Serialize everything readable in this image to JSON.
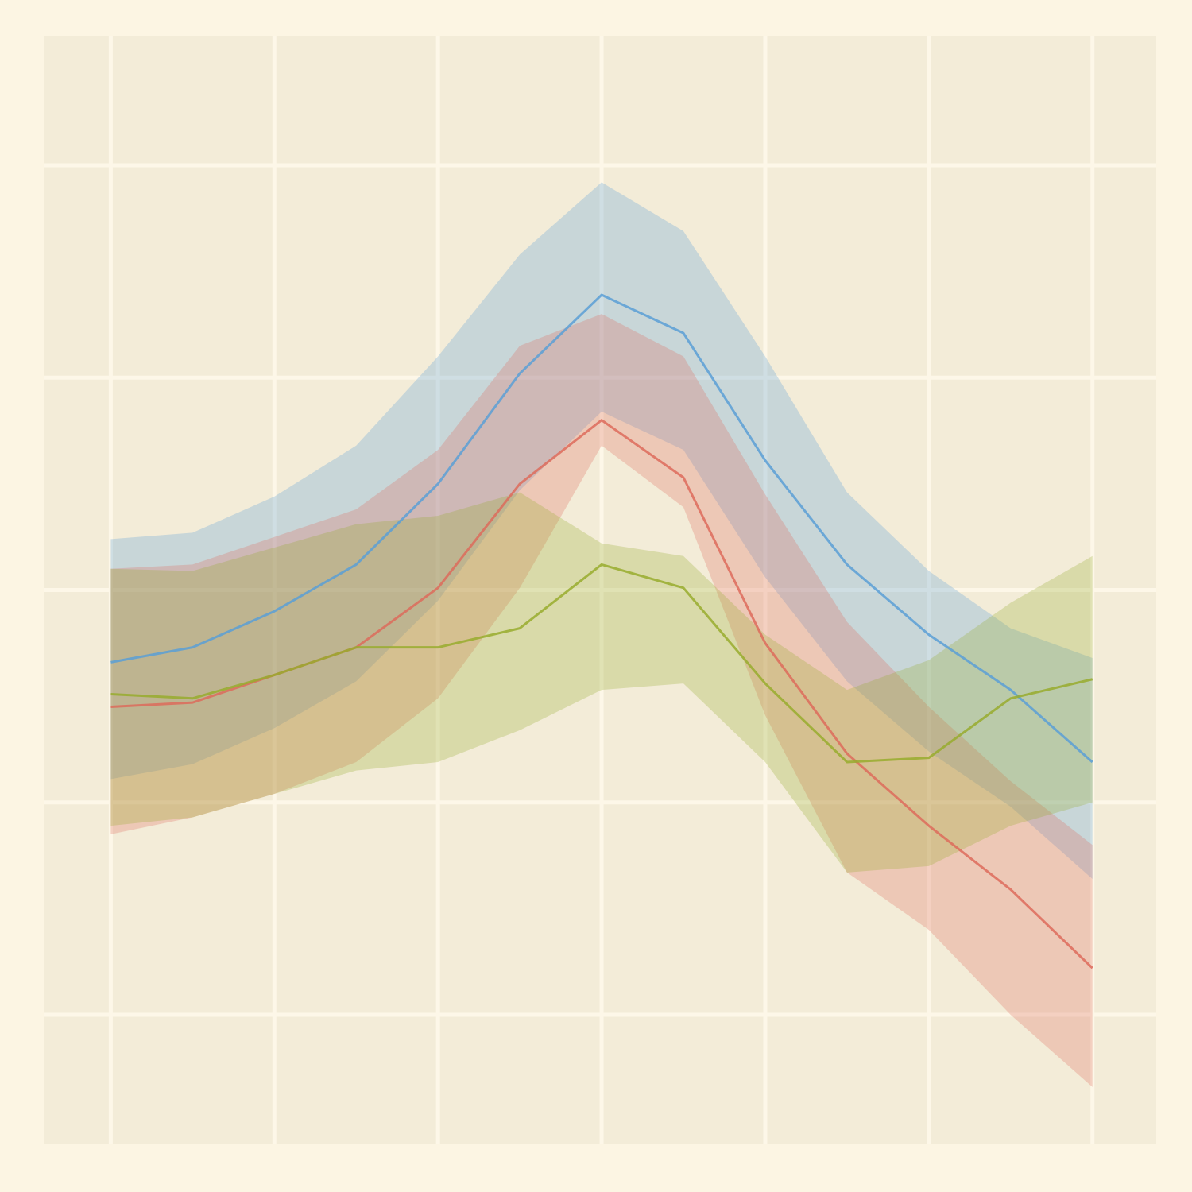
{
  "chart_data": {
    "type": "line",
    "x": [
      0,
      0.5,
      1,
      1.5,
      2,
      2.5,
      3,
      3.5,
      4,
      4.5,
      5,
      5.5,
      6
    ],
    "xlim": [
      -0.41,
      6.39
    ],
    "xticks": [
      0,
      1,
      2,
      3,
      4,
      5,
      6
    ],
    "ylim": [
      -0.61,
      4.61
    ],
    "yticks": [
      0,
      1,
      2,
      3,
      4
    ],
    "grid": true,
    "series": [
      {
        "color": "#5b9fd6",
        "values": [
          1.66,
          1.73,
          1.9,
          2.12,
          2.5,
          3.02,
          3.39,
          3.21,
          2.61,
          2.12,
          1.79,
          1.53,
          1.19
        ],
        "upper": [
          2.24,
          2.27,
          2.44,
          2.68,
          3.1,
          3.58,
          3.92,
          3.69,
          3.1,
          2.46,
          2.09,
          1.82,
          1.68
        ],
        "lower": [
          1.11,
          1.18,
          1.35,
          1.57,
          1.95,
          2.47,
          2.84,
          2.66,
          2.06,
          1.57,
          1.24,
          0.98,
          0.64
        ]
      },
      {
        "color": "#dd6b5c",
        "values": [
          1.45,
          1.47,
          1.6,
          1.73,
          2.01,
          2.5,
          2.8,
          2.53,
          1.75,
          1.23,
          0.89,
          0.59,
          0.22
        ],
        "upper": [
          2.1,
          2.12,
          2.25,
          2.38,
          2.66,
          3.15,
          3.3,
          3.1,
          2.45,
          1.85,
          1.45,
          1.1,
          0.8
        ],
        "lower": [
          0.85,
          0.93,
          1.04,
          1.19,
          1.49,
          2.01,
          2.68,
          2.39,
          1.41,
          0.67,
          0.4,
          0.0,
          -0.34
        ]
      },
      {
        "color": "#98ab2e",
        "values": [
          1.51,
          1.49,
          1.6,
          1.73,
          1.73,
          1.82,
          2.12,
          2.01,
          1.56,
          1.19,
          1.21,
          1.49,
          1.58
        ],
        "upper": [
          2.1,
          2.09,
          2.2,
          2.31,
          2.35,
          2.46,
          2.22,
          2.16,
          1.79,
          1.53,
          1.67,
          1.94,
          2.16
        ],
        "lower": [
          0.89,
          0.93,
          1.04,
          1.15,
          1.19,
          1.34,
          1.53,
          1.56,
          1.19,
          0.67,
          0.7,
          0.89,
          1.0
        ]
      }
    ]
  }
}
